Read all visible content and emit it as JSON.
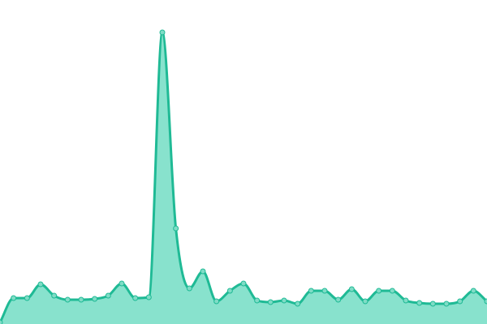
{
  "chart_data": {
    "type": "area",
    "values": [
      2,
      32,
      32,
      49,
      35,
      30,
      30,
      31,
      35,
      50,
      32,
      33,
      360,
      118,
      44,
      65,
      28,
      41,
      50,
      29,
      27,
      29,
      25,
      41,
      41,
      30,
      43,
      28,
      41,
      41,
      29,
      26,
      25,
      25,
      28,
      41,
      28
    ],
    "ylim": [
      0,
      400
    ],
    "color": "#1fba95",
    "fill_color": "#88e2cd",
    "marker_color": "#7fdcc6"
  }
}
